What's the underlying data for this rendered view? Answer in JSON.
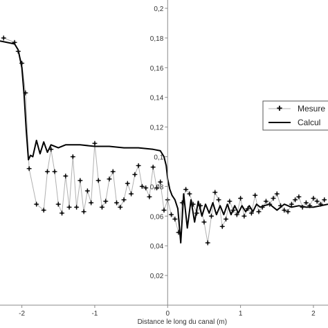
{
  "chart_data": {
    "type": "line",
    "xlabel": "Distance le long du canal (m)",
    "ylabel": "",
    "title": "",
    "xlim": [
      -2.3,
      2.2
    ],
    "ylim": [
      0,
      0.2
    ],
    "x_ticks": [
      -2,
      -1,
      0,
      1,
      2
    ],
    "x_tick_labels": [
      "-2",
      "-1",
      "0",
      "1",
      "2"
    ],
    "y_ticks": [
      0.02,
      0.04,
      0.06,
      0.08,
      0.1,
      0.12,
      0.14,
      0.16,
      0.18,
      0.2
    ],
    "y_tick_labels": [
      "0,02",
      "0,04",
      "0,06",
      "0,08",
      "0,1",
      "0,12",
      "0,14",
      "0,16",
      "0,18",
      "0,2"
    ],
    "grid": false,
    "legend_position": "right",
    "series": [
      {
        "name": "Mesure",
        "style": "markers",
        "color": "#111111",
        "line_color": "#b0b0b0",
        "x": [
          -2.25,
          -2.1,
          -2.05,
          -2.0,
          -1.95,
          -1.9,
          -1.8,
          -1.7,
          -1.65,
          -1.6,
          -1.55,
          -1.5,
          -1.45,
          -1.4,
          -1.35,
          -1.3,
          -1.25,
          -1.2,
          -1.15,
          -1.1,
          -1.05,
          -1.0,
          -0.95,
          -0.9,
          -0.85,
          -0.8,
          -0.75,
          -0.7,
          -0.65,
          -0.6,
          -0.55,
          -0.5,
          -0.45,
          -0.4,
          -0.35,
          -0.3,
          -0.25,
          -0.2,
          -0.15,
          -0.1,
          -0.05,
          0.0,
          0.05,
          0.1,
          0.15,
          0.2,
          0.25,
          0.3,
          0.35,
          0.4,
          0.45,
          0.5,
          0.55,
          0.6,
          0.65,
          0.7,
          0.75,
          0.8,
          0.85,
          0.9,
          0.95,
          1.0,
          1.05,
          1.1,
          1.15,
          1.2,
          1.25,
          1.3,
          1.35,
          1.4,
          1.45,
          1.5,
          1.55,
          1.6,
          1.65,
          1.7,
          1.75,
          1.8,
          1.85,
          1.9,
          1.95,
          2.0,
          2.05,
          2.1,
          2.15
        ],
        "y": [
          0.18,
          0.177,
          0.171,
          0.163,
          0.143,
          0.092,
          0.068,
          0.064,
          0.09,
          0.105,
          0.09,
          0.068,
          0.062,
          0.087,
          0.066,
          0.1,
          0.066,
          0.084,
          0.063,
          0.077,
          0.069,
          0.109,
          0.084,
          0.066,
          0.07,
          0.085,
          0.09,
          0.069,
          0.066,
          0.071,
          0.082,
          0.075,
          0.088,
          0.094,
          0.08,
          0.079,
          0.073,
          0.093,
          0.079,
          0.083,
          0.064,
          0.071,
          0.061,
          0.058,
          0.049,
          0.069,
          0.078,
          0.075,
          0.068,
          0.062,
          0.067,
          0.056,
          0.042,
          0.06,
          0.076,
          0.071,
          0.053,
          0.058,
          0.07,
          0.064,
          0.061,
          0.072,
          0.06,
          0.065,
          0.062,
          0.074,
          0.063,
          0.066,
          0.07,
          0.068,
          0.072,
          0.075,
          0.067,
          0.064,
          0.063,
          0.068,
          0.071,
          0.073,
          0.066,
          0.069,
          0.067,
          0.072,
          0.07,
          0.068,
          0.071
        ]
      },
      {
        "name": "Calcul",
        "style": "line",
        "color": "#000000",
        "x": [
          -2.3,
          -2.1,
          -2.05,
          -2.0,
          -1.97,
          -1.94,
          -1.91,
          -1.88,
          -1.85,
          -1.8,
          -1.75,
          -1.7,
          -1.65,
          -1.6,
          -1.5,
          -1.4,
          -1.2,
          -1.0,
          -0.8,
          -0.6,
          -0.4,
          -0.2,
          -0.1,
          -0.05,
          -0.02,
          0.0,
          0.03,
          0.06,
          0.1,
          0.14,
          0.18,
          0.22,
          0.27,
          0.32,
          0.37,
          0.42,
          0.47,
          0.52,
          0.57,
          0.62,
          0.67,
          0.72,
          0.77,
          0.82,
          0.87,
          0.92,
          0.97,
          1.02,
          1.07,
          1.12,
          1.17,
          1.22,
          1.27,
          1.32,
          1.4,
          1.5,
          1.6,
          1.7,
          1.8,
          1.9,
          2.0,
          2.1,
          2.2
        ],
        "y": [
          0.178,
          0.176,
          0.172,
          0.16,
          0.142,
          0.118,
          0.098,
          0.101,
          0.1,
          0.111,
          0.102,
          0.11,
          0.103,
          0.108,
          0.106,
          0.108,
          0.108,
          0.107,
          0.107,
          0.106,
          0.106,
          0.105,
          0.104,
          0.1,
          0.094,
          0.085,
          0.078,
          0.074,
          0.071,
          0.065,
          0.042,
          0.075,
          0.052,
          0.071,
          0.056,
          0.07,
          0.06,
          0.068,
          0.062,
          0.069,
          0.061,
          0.067,
          0.061,
          0.068,
          0.061,
          0.067,
          0.062,
          0.067,
          0.063,
          0.067,
          0.063,
          0.068,
          0.066,
          0.067,
          0.068,
          0.064,
          0.068,
          0.066,
          0.067,
          0.066,
          0.066,
          0.067,
          0.068
        ]
      }
    ]
  }
}
